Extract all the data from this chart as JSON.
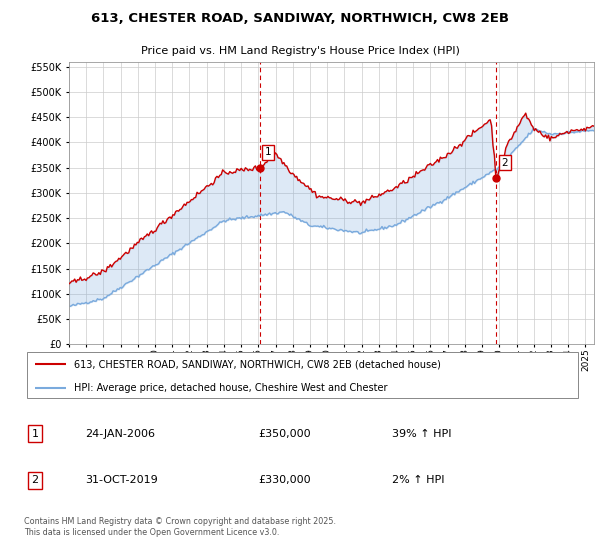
{
  "title": "613, CHESTER ROAD, SANDIWAY, NORTHWICH, CW8 2EB",
  "subtitle": "Price paid vs. HM Land Registry's House Price Index (HPI)",
  "legend_label_red": "613, CHESTER ROAD, SANDIWAY, NORTHWICH, CW8 2EB (detached house)",
  "legend_label_blue": "HPI: Average price, detached house, Cheshire West and Chester",
  "annotation1_date": "24-JAN-2006",
  "annotation1_price": "£350,000",
  "annotation1_hpi": "39% ↑ HPI",
  "annotation2_date": "31-OCT-2019",
  "annotation2_price": "£330,000",
  "annotation2_hpi": "2% ↑ HPI",
  "footnote": "Contains HM Land Registry data © Crown copyright and database right 2025.\nThis data is licensed under the Open Government Licence v3.0.",
  "red_color": "#cc0000",
  "blue_color": "#7aaadd",
  "fill_color": "#ddeeff",
  "vline_color": "#cc0000",
  "grid_color": "#cccccc",
  "background_color": "#ffffff",
  "ylim": [
    0,
    560000
  ],
  "yticks": [
    0,
    50000,
    100000,
    150000,
    200000,
    250000,
    300000,
    350000,
    400000,
    450000,
    500000,
    550000
  ],
  "sale1_x": 2006.07,
  "sale1_y": 350000,
  "sale2_x": 2019.83,
  "sale2_y": 330000,
  "xmin": 1995,
  "xmax": 2025.5
}
